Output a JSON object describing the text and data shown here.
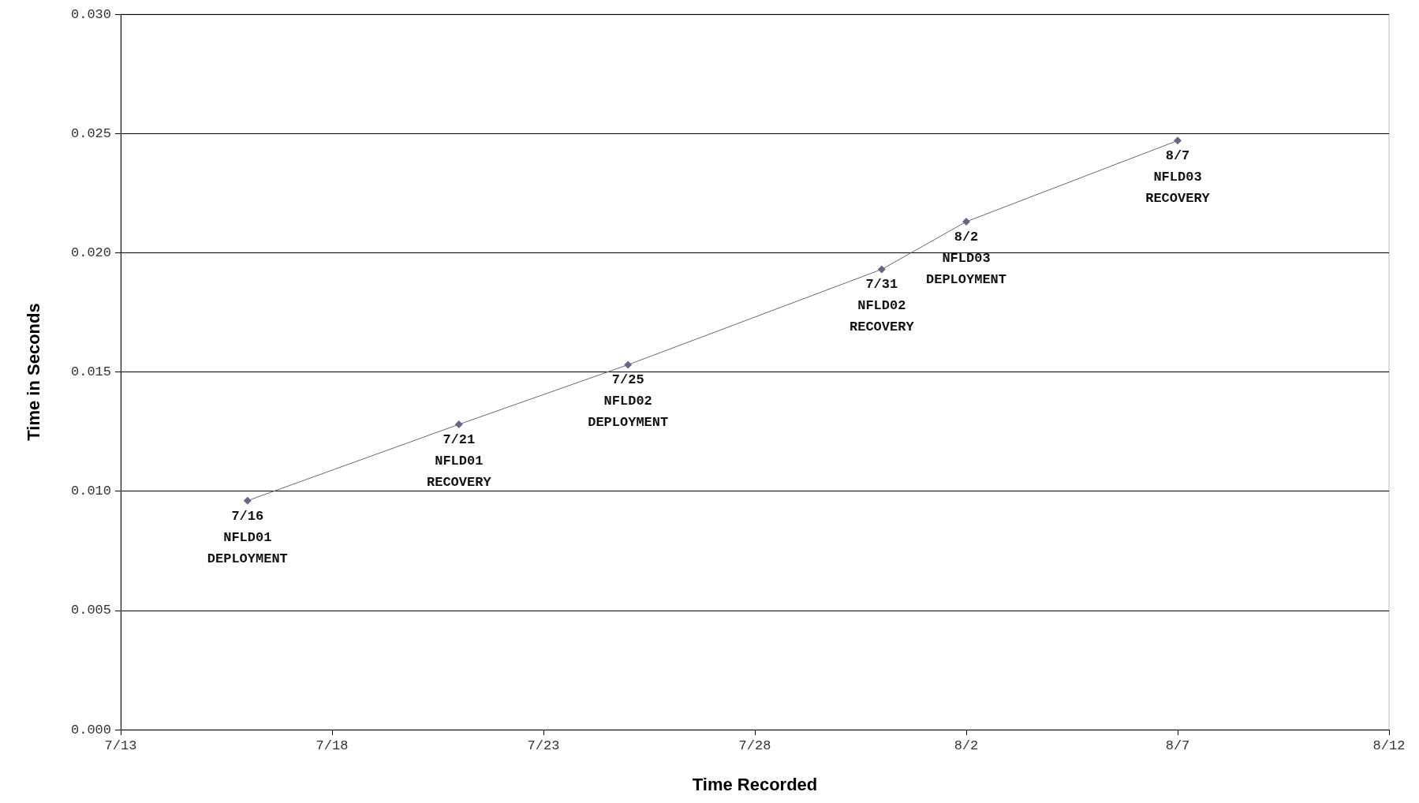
{
  "chart_data": {
    "type": "line",
    "xlabel": "Time Recorded",
    "ylabel": "Time in Seconds",
    "x": [
      "--07-16",
      "--07-21",
      "--07-25",
      "--07-31",
      "--08-02",
      "--08-07"
    ],
    "series": [
      {
        "color": "#6b6487",
        "values": [
          0.0096,
          0.0128,
          0.0153,
          0.0193,
          0.0213,
          0.0247
        ]
      }
    ],
    "xlim": [
      "--07-13",
      "--08-12"
    ],
    "xticks": [
      {
        "value": "--07-13",
        "label": "7/13"
      },
      {
        "value": "--07-18",
        "label": "7/18"
      },
      {
        "value": "--07-23",
        "label": "7/23"
      },
      {
        "value": "--07-28",
        "label": "7/28"
      },
      {
        "value": "--08-02",
        "label": "8/2"
      },
      {
        "value": "--08-07",
        "label": "8/7"
      },
      {
        "value": "--08-12",
        "label": "8/12"
      }
    ],
    "ylim": [
      0,
      0.03
    ],
    "yticks": [
      {
        "value": 0,
        "label": "0.000"
      },
      {
        "value": 0.005,
        "label": "0.005"
      },
      {
        "value": 0.01,
        "label": "0.010"
      },
      {
        "value": 0.015,
        "label": "0.015"
      },
      {
        "value": 0.02,
        "label": "0.020"
      },
      {
        "value": 0.025,
        "label": "0.025"
      },
      {
        "value": 0.03,
        "label": "0.030"
      }
    ],
    "annotations": [
      {
        "text": "7/16\nNFLD01\nDEPLOYMENT",
        "x": "--07-16",
        "y": 0.0096
      },
      {
        "text": "7/21\nNFLD01\nRECOVERY",
        "x": "--07-21",
        "y": 0.0128
      },
      {
        "text": "7/25\nNFLD02\nDEPLOYMENT",
        "x": "--07-25",
        "y": 0.0153
      },
      {
        "text": "7/31\nNFLD02\nRECOVERY",
        "x": "--07-31",
        "y": 0.0193
      },
      {
        "text": "8/2\nNFLD03\nDEPLOYMENT",
        "x": "--08-02",
        "y": 0.0213
      },
      {
        "text": "8/7\nNFLD03\nRECOVERY",
        "x": "--08-07",
        "y": 0.0247
      }
    ],
    "grid": "y",
    "marker": "diamond",
    "line_style": "solid"
  }
}
